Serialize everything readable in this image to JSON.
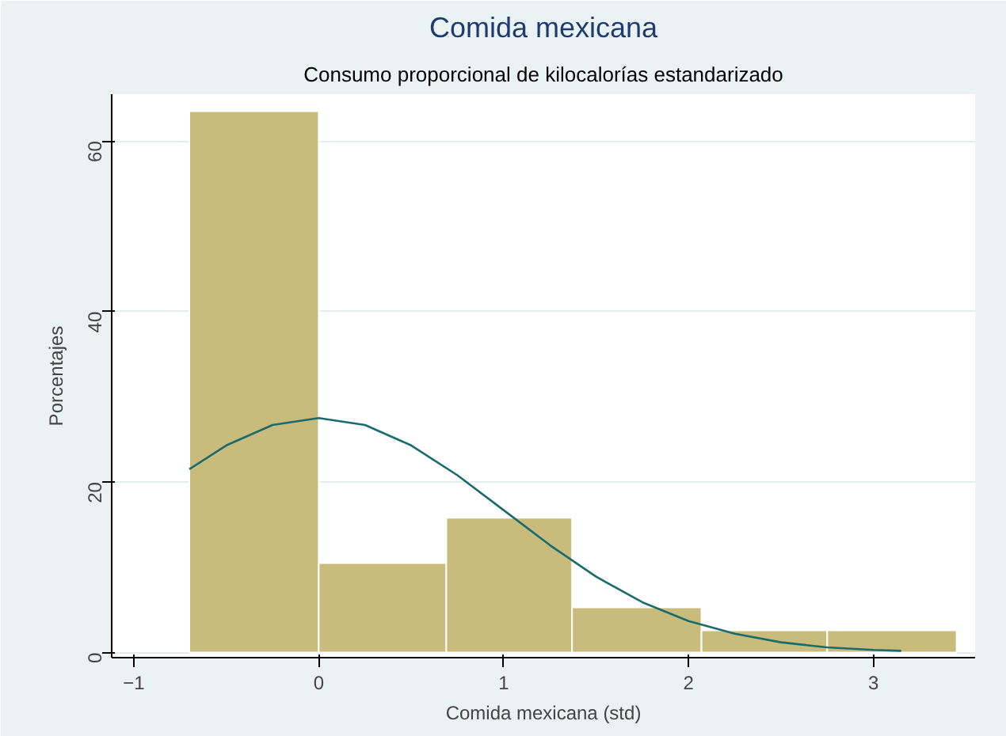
{
  "chart_data": {
    "type": "histogram",
    "title": "Comida mexicana",
    "subtitle": "Consumo proporcional de kilocalorías estandarizado",
    "xlabel": "Comida mexicana (std)",
    "ylabel": "Porcentajes",
    "bins": [
      -0.7,
      0,
      0.69,
      1.37,
      2.07,
      2.75,
      3.45
    ],
    "values": [
      63.5,
      10.5,
      15.8,
      5.3,
      2.6,
      2.6
    ],
    "color": "#c8bb7c",
    "series": [
      {
        "type": "line",
        "color": "#1a6b6b",
        "x": [
          -0.7,
          -0.5,
          -0.25,
          0,
          0.25,
          0.5,
          0.75,
          1.0,
          1.25,
          1.5,
          1.75,
          2.0,
          2.25,
          2.5,
          2.75,
          3.0,
          3.15
        ],
        "values": [
          21.5,
          24.3,
          26.7,
          27.5,
          26.7,
          24.3,
          20.8,
          16.7,
          12.6,
          8.9,
          5.9,
          3.7,
          2.2,
          1.2,
          0.6,
          0.3,
          0.2
        ]
      }
    ],
    "xlim": [
      -1.12,
      3.55
    ],
    "ylim": [
      -0.6,
      65.5
    ],
    "xticks": [
      -1,
      0,
      1,
      2,
      3
    ],
    "yticks": [
      0,
      20,
      40,
      60
    ],
    "grid": "y"
  }
}
